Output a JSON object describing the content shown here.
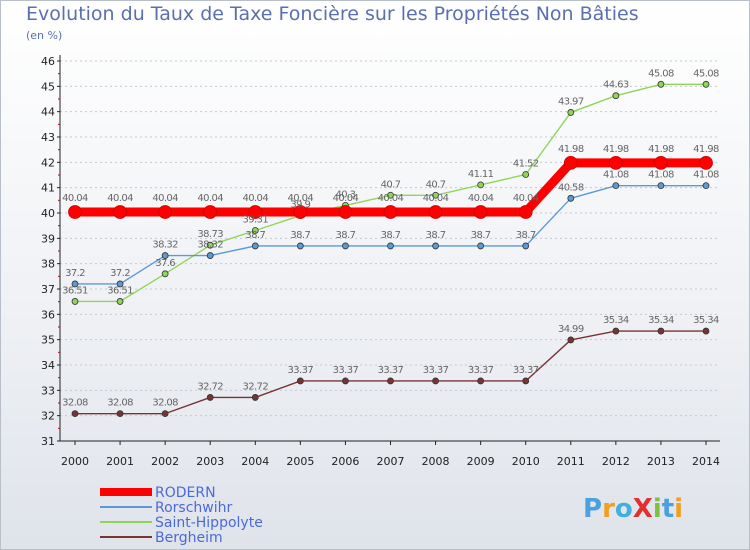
{
  "title": "Evolution du Taux de Taxe Foncière sur les Propriétés Non Bâties",
  "subtitle": "(en %)",
  "logo": "ProXiti",
  "chart_data": {
    "type": "line",
    "title": "Evolution du Taux de Taxe Foncière sur les Propriétés Non Bâties",
    "ylabel": "(en %)",
    "xlabel": "",
    "ylim": [
      31,
      46
    ],
    "yticks": [
      "31",
      "32",
      "33",
      "34",
      "35",
      "36",
      "37",
      "38",
      "39",
      "40",
      "41",
      "42",
      "43",
      "44",
      "45",
      "46"
    ],
    "x": [
      "2000",
      "2001",
      "2002",
      "2003",
      "2004",
      "2005",
      "2006",
      "2007",
      "2008",
      "2009",
      "2010",
      "2011",
      "2012",
      "2013",
      "2014"
    ],
    "grid": "horizontal dashed",
    "legend": "bottom-left",
    "series": [
      {
        "name": "RODERN",
        "color": "#ff0000",
        "values": [
          40.04,
          40.04,
          40.04,
          40.04,
          40.04,
          40.04,
          40.04,
          40.04,
          40.04,
          40.04,
          40.04,
          41.98,
          41.98,
          41.98,
          41.98
        ],
        "labels": [
          "40.04",
          "40.04",
          "40.04",
          "40.04",
          "40.04",
          "40.04",
          "40.04",
          "40.04",
          "40.04",
          "40.04",
          "40.04",
          "41.98",
          "41.98",
          "41.98",
          "41.98"
        ]
      },
      {
        "name": "Rorschwihr",
        "color": "#5b9ad5",
        "values": [
          37.2,
          37.2,
          38.32,
          38.32,
          38.7,
          38.7,
          38.7,
          38.7,
          38.7,
          38.7,
          38.7,
          40.58,
          41.08,
          41.08,
          41.08
        ],
        "labels": [
          "37.2",
          "37.2",
          "38.32",
          "38.32",
          "38.7",
          "38.7",
          "38.7",
          "38.7",
          "38.7",
          "38.7",
          "38.7",
          "40.58",
          "41.08",
          "41.08",
          "41.08"
        ]
      },
      {
        "name": "Saint-Hippolyte",
        "color": "#8fd55a",
        "values": [
          36.51,
          36.51,
          37.6,
          38.73,
          39.31,
          39.9,
          40.3,
          40.7,
          40.7,
          41.11,
          41.52,
          43.97,
          44.63,
          45.08,
          45.08
        ],
        "labels": [
          "36.51",
          "36.51",
          "37.6",
          "38.73",
          "39.31",
          "39.9",
          "40.3",
          "40.7",
          "40.7",
          "41.11",
          "41.52",
          "43.97",
          "44.63",
          "45.08",
          "45.08"
        ]
      },
      {
        "name": "Bergheim",
        "color": "#7a3333",
        "values": [
          32.08,
          32.08,
          32.08,
          32.72,
          32.72,
          33.37,
          33.37,
          33.37,
          33.37,
          33.37,
          33.37,
          34.99,
          35.34,
          35.34,
          35.34
        ],
        "labels": [
          "32.08",
          "32.08",
          "32.08",
          "32.72",
          "32.72",
          "33.37",
          "33.37",
          "33.37",
          "33.37",
          "33.37",
          "33.37",
          "34.99",
          "35.34",
          "35.34",
          "35.34"
        ]
      }
    ]
  }
}
